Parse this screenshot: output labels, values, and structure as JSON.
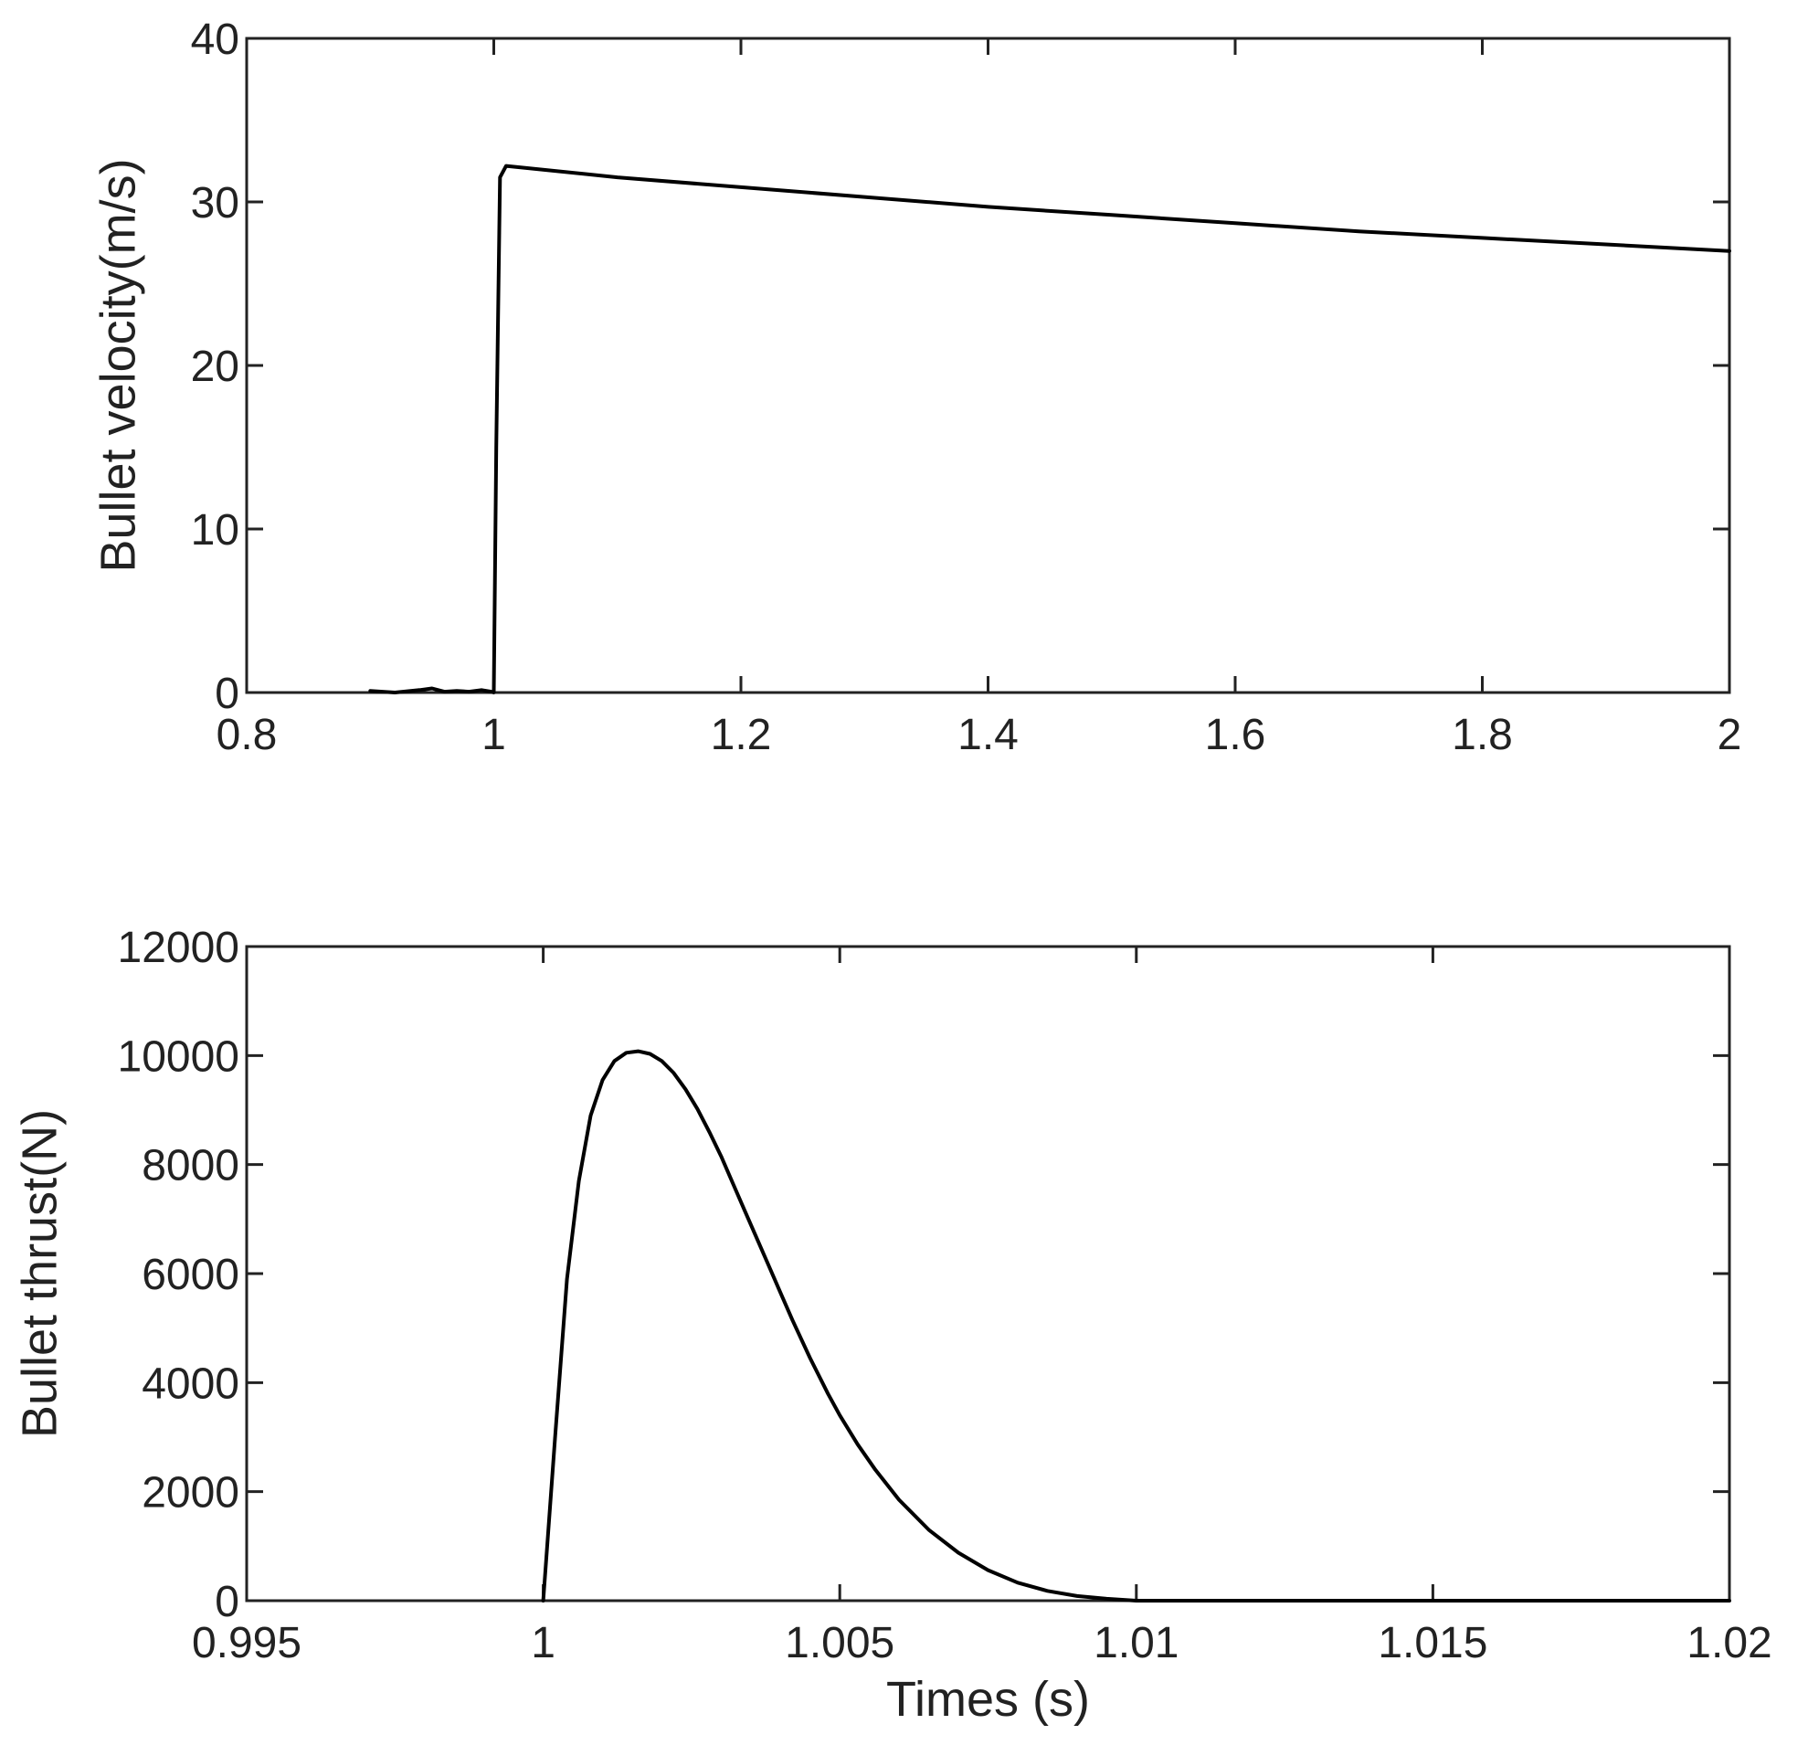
{
  "chart_data": [
    {
      "type": "line",
      "title": "",
      "xlabel": "",
      "ylabel": "Bullet velocity(m/s)",
      "xlim": [
        0.8,
        2
      ],
      "ylim": [
        0,
        40
      ],
      "x_ticks": [
        0.8,
        1,
        1.2,
        1.4,
        1.6,
        1.8,
        2
      ],
      "x_tick_labels": [
        "0.8",
        "1",
        "1.2",
        "1.4",
        "1.6",
        "1.8",
        "2"
      ],
      "y_ticks": [
        0,
        10,
        20,
        30,
        40
      ],
      "y_tick_labels": [
        "0",
        "10",
        "20",
        "30",
        "40"
      ],
      "grid": false,
      "series": [
        {
          "color": "#000000",
          "x": [
            0.9,
            0.92,
            0.94,
            0.95,
            0.96,
            0.97,
            0.98,
            0.99,
            0.998,
            1.0,
            1.002,
            1.005,
            1.01,
            1.1,
            1.2,
            1.3,
            1.4,
            1.5,
            1.6,
            1.7,
            1.8,
            1.9,
            2.0
          ],
          "y": [
            0.1,
            0.0,
            0.15,
            0.25,
            0.05,
            0.1,
            0.05,
            0.15,
            0.05,
            0.0,
            15.0,
            31.5,
            32.2,
            31.5,
            30.9,
            30.3,
            29.7,
            29.2,
            28.7,
            28.2,
            27.8,
            27.4,
            27.0
          ]
        }
      ]
    },
    {
      "type": "line",
      "title": "",
      "xlabel": "Times (s)",
      "ylabel": "Bullet thrust(N)",
      "xlim": [
        0.995,
        1.02
      ],
      "ylim": [
        0,
        12000
      ],
      "x_ticks": [
        0.995,
        1.0,
        1.005,
        1.01,
        1.015,
        1.02
      ],
      "x_tick_labels": [
        "0.995",
        "1",
        "1.005",
        "1.01",
        "1.015",
        "1.02"
      ],
      "y_ticks": [
        0,
        2000,
        4000,
        6000,
        8000,
        10000,
        12000
      ],
      "y_tick_labels": [
        "0",
        "2000",
        "4000",
        "6000",
        "8000",
        "10000",
        "12000"
      ],
      "grid": false,
      "series": [
        {
          "color": "#000000",
          "x": [
            1.0,
            1.0002,
            1.0004,
            1.0006,
            1.0008,
            1.001,
            1.0012,
            1.0014,
            1.0016,
            1.0018,
            1.002,
            1.0022,
            1.0024,
            1.0026,
            1.0028,
            1.003,
            1.0032,
            1.0034,
            1.0036,
            1.0038,
            1.004,
            1.0042,
            1.0045,
            1.0048,
            1.005,
            1.0053,
            1.0056,
            1.006,
            1.0065,
            1.007,
            1.0075,
            1.008,
            1.0085,
            1.009,
            1.0095,
            1.01,
            1.012,
            1.015,
            1.018,
            1.02
          ],
          "y": [
            0,
            3000,
            5900,
            7700,
            8900,
            9550,
            9900,
            10050,
            10080,
            10030,
            9900,
            9680,
            9380,
            9020,
            8600,
            8150,
            7650,
            7150,
            6650,
            6150,
            5650,
            5150,
            4450,
            3800,
            3400,
            2870,
            2400,
            1850,
            1300,
            880,
            560,
            330,
            180,
            85,
            35,
            0,
            0,
            0,
            0,
            0
          ]
        }
      ]
    }
  ]
}
